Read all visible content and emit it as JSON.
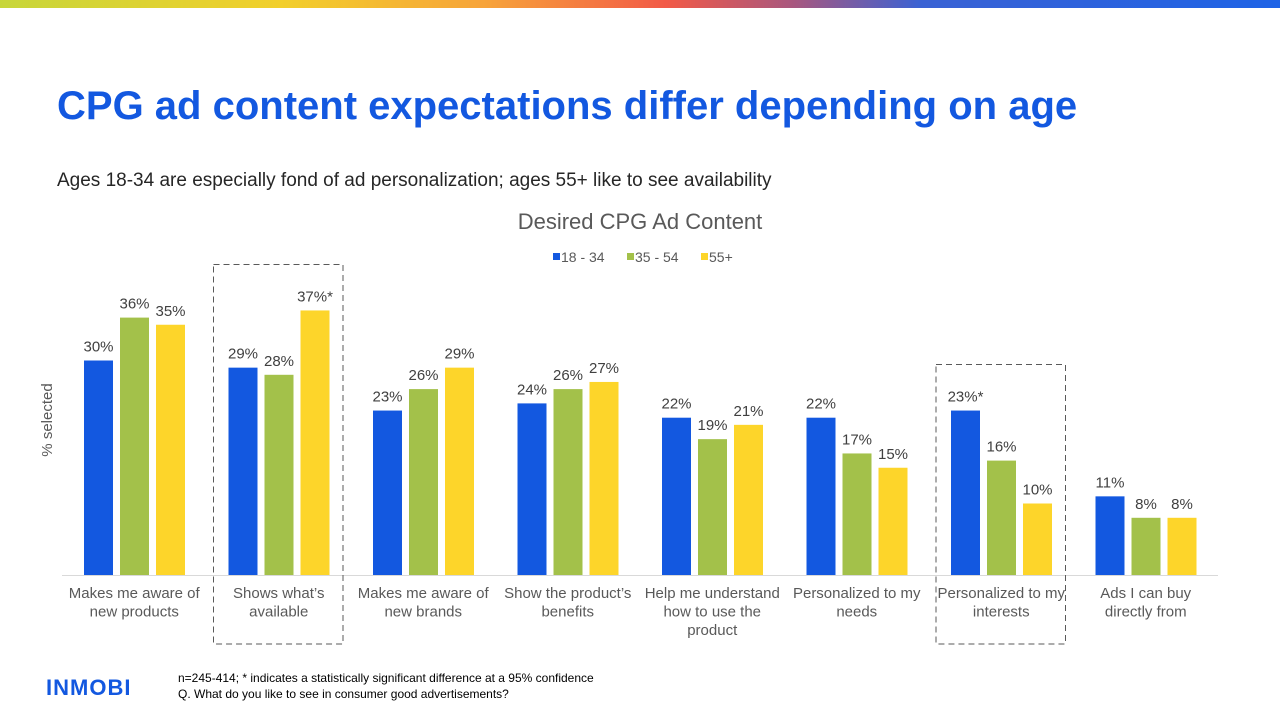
{
  "colors": {
    "title": "#1358e0",
    "series": [
      "#1358e0",
      "#a3c14a",
      "#fdd52a"
    ]
  },
  "header": {
    "title": "CPG ad content expectations differ depending on age",
    "subtitle": "Ages 18-34 are especially fond of ad personalization; ages 55+ like to see availability"
  },
  "chart_data": {
    "type": "bar",
    "title": "Desired CPG Ad Content",
    "ylabel": "% selected",
    "xlabel": "",
    "ylim": [
      0,
      40
    ],
    "legend_position": "top-center",
    "categories": [
      [
        "Makes me aware of",
        "new products"
      ],
      [
        "Shows what’s",
        "available"
      ],
      [
        "Makes me aware of",
        "new brands"
      ],
      [
        "Show the product’s",
        "benefits"
      ],
      [
        "Help me understand",
        "how to use the",
        "product"
      ],
      [
        "Personalized to my",
        "needs"
      ],
      [
        "Personalized to my",
        "interests"
      ],
      [
        "Ads I can buy",
        "directly from"
      ]
    ],
    "highlighted_categories": [
      1,
      6
    ],
    "series": [
      {
        "name": "18 - 34",
        "values": [
          30,
          29,
          23,
          24,
          22,
          22,
          23,
          11
        ],
        "labels": [
          "30%",
          "29%",
          "23%",
          "24%",
          "22%",
          "22%",
          "23%*",
          "11%"
        ]
      },
      {
        "name": "35 - 54",
        "values": [
          36,
          28,
          26,
          26,
          19,
          17,
          16,
          8
        ],
        "labels": [
          "36%",
          "28%",
          "26%",
          "26%",
          "19%",
          "17%",
          "16%",
          "8%"
        ]
      },
      {
        "name": "55+",
        "values": [
          35,
          37,
          29,
          27,
          21,
          15,
          10,
          8
        ],
        "labels": [
          "35%",
          "37%*",
          "29%",
          "27%",
          "21%",
          "15%",
          "10%",
          "8%"
        ]
      }
    ]
  },
  "footer": {
    "logo": "INMOBI",
    "note": "n=245-414; * indicates a statistically significant difference at a 95% confidence",
    "question": "Q. What do you like to see in consumer good advertisements?"
  }
}
